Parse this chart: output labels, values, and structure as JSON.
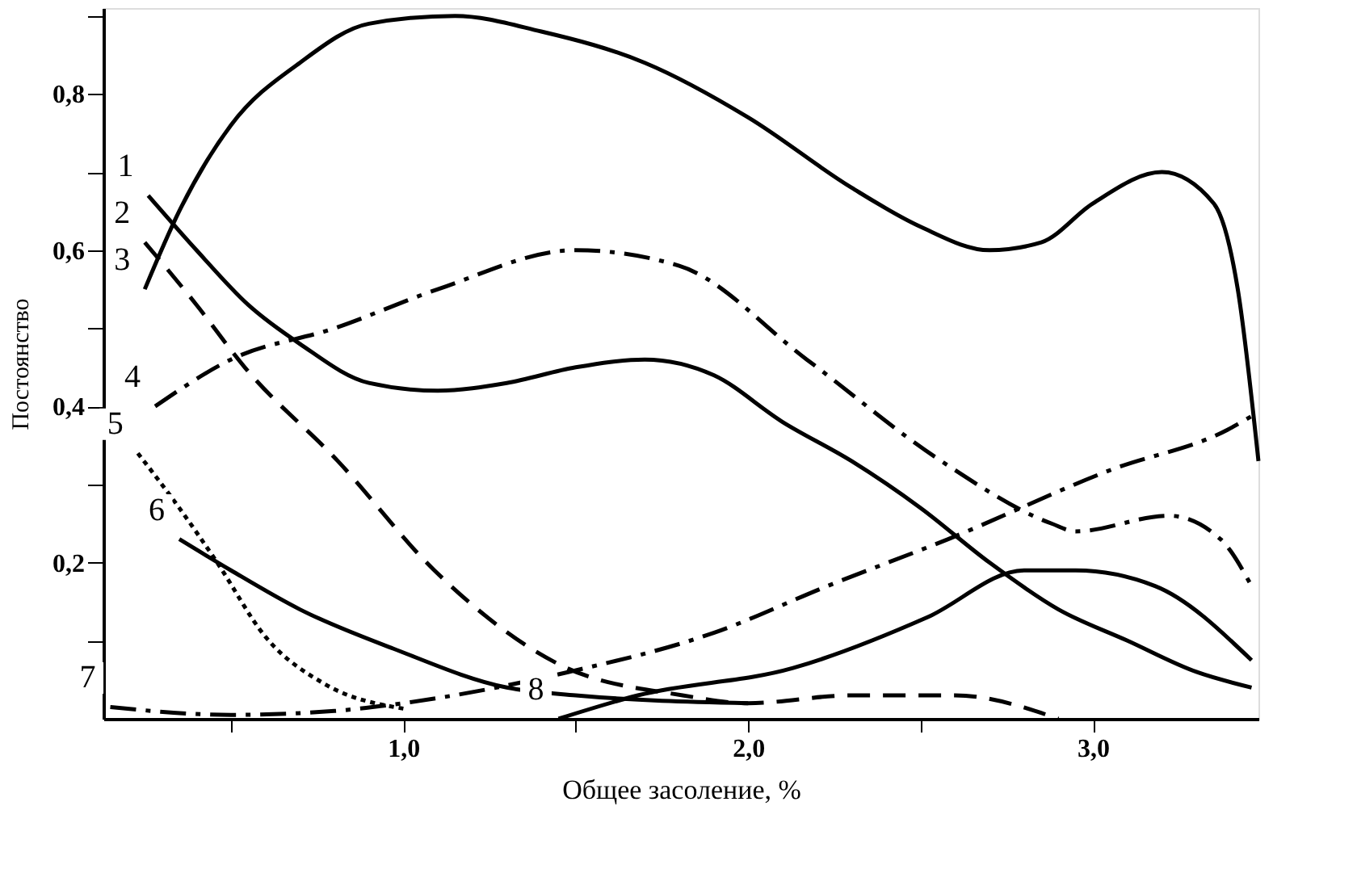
{
  "chart_data": {
    "type": "line",
    "xlabel": "Общее засоление, %",
    "ylabel": "Постоянство",
    "xlim": [
      0.13,
      3.48
    ],
    "ylim": [
      0,
      0.91
    ],
    "xticks": [
      {
        "value": 0.5,
        "label": null
      },
      {
        "value": 1.0,
        "label": "1,0"
      },
      {
        "value": 1.5,
        "label": null
      },
      {
        "value": 2.0,
        "label": "2,0"
      },
      {
        "value": 2.5,
        "label": null
      },
      {
        "value": 3.0,
        "label": "3,0"
      }
    ],
    "yticks": [
      {
        "value": 0.1,
        "label": null
      },
      {
        "value": 0.2,
        "label": "0,2"
      },
      {
        "value": 0.3,
        "label": null
      },
      {
        "value": 0.4,
        "label": "0,4"
      },
      {
        "value": 0.5,
        "label": null
      },
      {
        "value": 0.6,
        "label": "0,6"
      },
      {
        "value": 0.7,
        "label": null
      },
      {
        "value": 0.8,
        "label": "0,8"
      },
      {
        "value": 0.9,
        "label": null
      }
    ],
    "grid": false,
    "marker": "none",
    "series": [
      {
        "name": "1",
        "color": "#000000",
        "line_style": "solid",
        "x": [
          0.26,
          0.4,
          0.55,
          0.7,
          0.9,
          1.1,
          1.3,
          1.5,
          1.7,
          1.9,
          2.1,
          2.3,
          2.5,
          2.7,
          2.9,
          3.1,
          3.3,
          3.46
        ],
        "values": [
          0.67,
          0.6,
          0.53,
          0.48,
          0.43,
          0.42,
          0.43,
          0.45,
          0.46,
          0.44,
          0.38,
          0.33,
          0.27,
          0.2,
          0.14,
          0.1,
          0.06,
          0.04
        ]
      },
      {
        "name": "2",
        "color": "#000000",
        "line_style": "dashed",
        "x": [
          0.25,
          0.4,
          0.54,
          0.81,
          1.09,
          1.45,
          1.81,
          2.0,
          2.3,
          2.6,
          2.9
        ],
        "values": [
          0.61,
          0.53,
          0.45,
          0.33,
          0.19,
          0.07,
          0.03,
          0.02,
          0.03,
          0.03,
          0.0
        ]
      },
      {
        "name": "3",
        "color": "#000000",
        "line_style": "solid",
        "x": [
          0.25,
          0.35,
          0.5,
          0.7,
          0.9,
          1.15,
          1.4,
          1.7,
          2.0,
          2.3,
          2.5,
          2.7,
          2.85,
          3.0,
          3.2,
          3.35,
          3.42,
          3.48
        ],
        "values": [
          0.55,
          0.65,
          0.76,
          0.84,
          0.89,
          0.9,
          0.88,
          0.84,
          0.77,
          0.68,
          0.63,
          0.6,
          0.61,
          0.66,
          0.7,
          0.66,
          0.55,
          0.33
        ]
      },
      {
        "name": "4",
        "color": "#000000",
        "line_style": "dashdot",
        "x": [
          0.28,
          0.5,
          0.8,
          1.1,
          1.5,
          1.8,
          2.17,
          2.56,
          2.88,
          2.95,
          3.22,
          3.37,
          3.46
        ],
        "values": [
          0.4,
          0.46,
          0.5,
          0.55,
          0.6,
          0.58,
          0.46,
          0.33,
          0.25,
          0.24,
          0.26,
          0.23,
          0.17
        ]
      },
      {
        "name": "5",
        "color": "#000000",
        "line_style": "dotted",
        "x": [
          0.23,
          0.35,
          0.46,
          0.6,
          0.77,
          1.0
        ],
        "values": [
          0.34,
          0.27,
          0.2,
          0.105,
          0.045,
          0.013
        ]
      },
      {
        "name": "6",
        "color": "#000000",
        "line_style": "solid",
        "x": [
          0.35,
          0.5,
          0.7,
          0.97,
          1.3,
          1.5,
          2.0
        ],
        "values": [
          0.23,
          0.19,
          0.14,
          0.09,
          0.04,
          0.03,
          0.02
        ]
      },
      {
        "name": "7",
        "color": "#000000",
        "line_style": "dashdot",
        "x": [
          0.15,
          0.5,
          0.8,
          1.0,
          1.48,
          1.9,
          2.23,
          2.58,
          3.06,
          3.39,
          3.47
        ],
        "values": [
          0.015,
          0.005,
          0.01,
          0.02,
          0.06,
          0.11,
          0.17,
          0.23,
          0.32,
          0.37,
          0.39
        ]
      },
      {
        "name": "8",
        "color": "#000000",
        "line_style": "solid",
        "x": [
          1.45,
          1.68,
          2.13,
          2.52,
          2.8,
          2.95,
          3.18,
          3.46
        ],
        "values": [
          0.0,
          0.03,
          0.065,
          0.13,
          0.19,
          0.19,
          0.17,
          0.075
        ]
      }
    ]
  }
}
